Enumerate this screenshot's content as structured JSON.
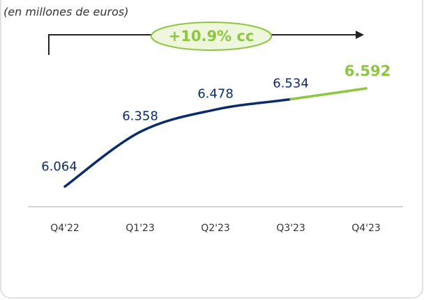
{
  "chart_data": {
    "type": "line",
    "subtitle": "(en millones de euros)",
    "annotation": "+10.9% cc",
    "categories": [
      "Q4'22",
      "Q1'23",
      "Q2'23",
      "Q3'23",
      "Q4'23"
    ],
    "series": [
      {
        "values": [
          6064,
          6358,
          6478,
          6534,
          6592
        ],
        "value_labels": [
          "6.064",
          "6.358",
          "6.478",
          "6.534",
          "6.592"
        ],
        "color": "#0b2c6b",
        "last_segment_color": "#8dc63f"
      }
    ],
    "annotation_color": "#8dc63f"
  }
}
